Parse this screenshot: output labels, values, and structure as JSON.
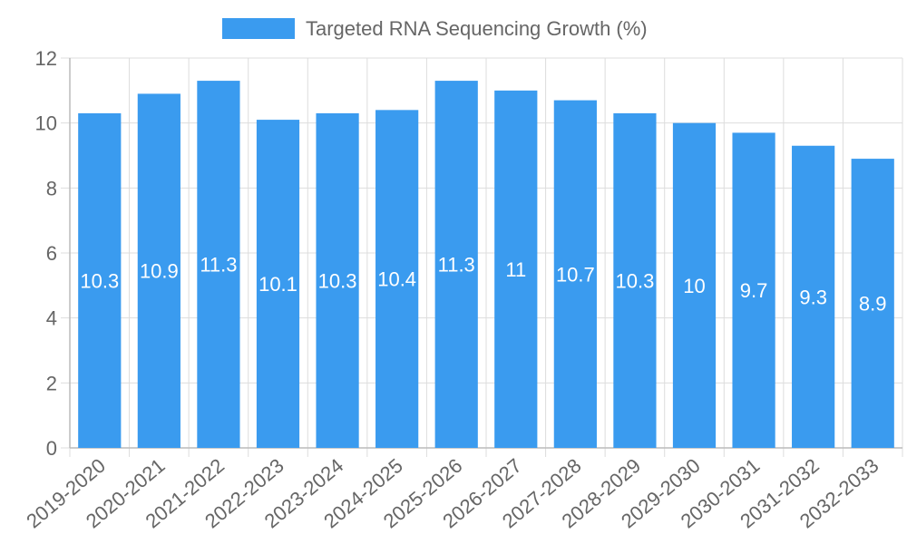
{
  "chart_data": {
    "type": "bar",
    "title": "",
    "xlabel": "",
    "ylabel": "",
    "legend": [
      "Targeted RNA Sequencing Growth (%)"
    ],
    "legend_position": "top",
    "categories": [
      "2019-2020",
      "2020-2021",
      "2021-2022",
      "2022-2023",
      "2023-2024",
      "2024-2025",
      "2025-2026",
      "2026-2027",
      "2027-2028",
      "2028-2029",
      "2029-2030",
      "2030-2031",
      "2031-2032",
      "2032-2033"
    ],
    "series": [
      {
        "name": "Targeted RNA Sequencing Growth (%)",
        "values": [
          10.3,
          10.9,
          11.3,
          10.1,
          10.3,
          10.4,
          11.3,
          11,
          10.7,
          10.3,
          10,
          9.7,
          9.3,
          8.9
        ]
      }
    ],
    "ylim": [
      0,
      12
    ],
    "yticks": [
      0,
      2,
      4,
      6,
      8,
      10,
      12
    ],
    "grid": true,
    "colors": {
      "bar": "#3a9bef",
      "label": "#ffffff",
      "text": "#666666",
      "grid": "#dddddd"
    }
  }
}
